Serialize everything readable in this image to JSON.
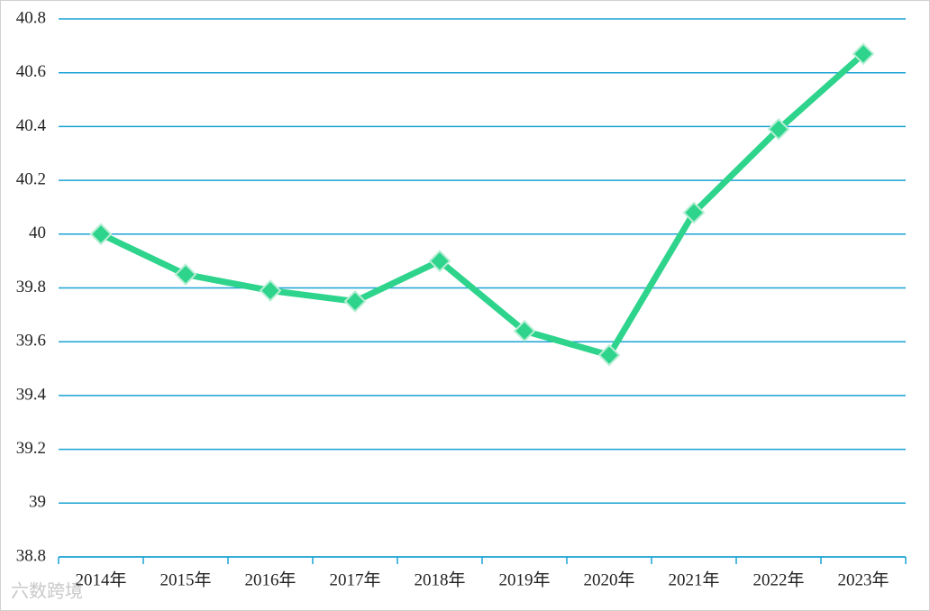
{
  "chart_data": {
    "type": "line",
    "categories": [
      "2014年",
      "2015年",
      "2016年",
      "2017年",
      "2018年",
      "2019年",
      "2020年",
      "2021年",
      "2022年",
      "2023年"
    ],
    "series": [
      {
        "color": "#2ed48c",
        "values": [
          40.0,
          39.85,
          39.79,
          39.75,
          39.9,
          39.64,
          39.55,
          40.08,
          40.39,
          40.67
        ]
      }
    ],
    "ylim": [
      38.8,
      40.8
    ],
    "yticks": [
      38.8,
      39,
      39.2,
      39.4,
      39.6,
      39.8,
      40,
      40.2,
      40.4,
      40.6,
      40.8
    ],
    "grid": true,
    "watermark": "六数跨境"
  }
}
